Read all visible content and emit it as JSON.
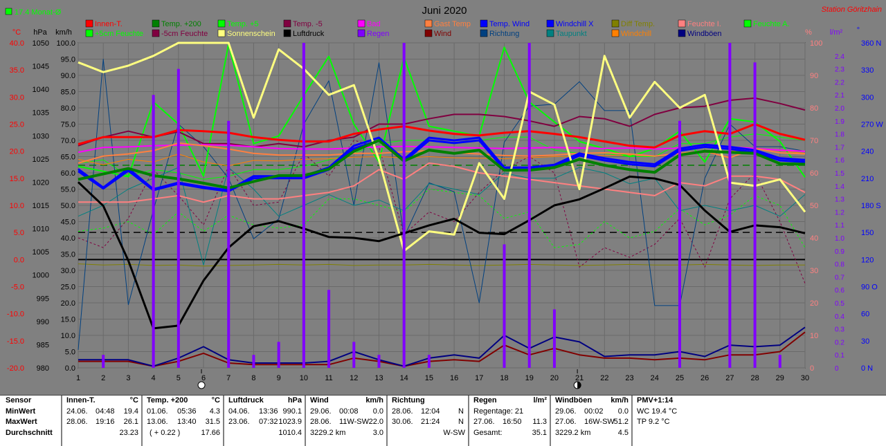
{
  "header": {
    "month_title": "Juni 2020",
    "station": "Station Göritzhain",
    "avg_label": "17.4 Monat-Ø"
  },
  "axes": {
    "left_units": [
      "°C",
      "hPa",
      "km/h"
    ],
    "right_units": [
      "%",
      "l/m²",
      "°"
    ],
    "temp_ticks": [
      "40.0",
      "35.0",
      "30.0",
      "25.0",
      "20.0",
      "15.0",
      "10.0",
      "5.0",
      "0.0",
      "-5.0",
      "-10.0",
      "-15.0",
      "-20.0"
    ],
    "pressure_ticks": [
      "1050",
      "1045",
      "1040",
      "1035",
      "1030",
      "1025",
      "1020",
      "1015",
      "1010",
      "1005",
      "1000",
      "995",
      "990",
      "985",
      "980"
    ],
    "wind_ticks": [
      "100.0",
      "95.0",
      "90.0",
      "85.0",
      "80.0",
      "75.0",
      "70.0",
      "65.0",
      "60.0",
      "55.0",
      "50.0",
      "45.0",
      "40.0",
      "35.0",
      "30.0",
      "25.0",
      "20.0",
      "15.0",
      "10.0",
      "5.0",
      "0.0"
    ],
    "humidity_ticks": [
      "100",
      "90",
      "80",
      "70",
      "60",
      "50",
      "40",
      "30",
      "20",
      "10",
      "0"
    ],
    "rain_ticks": [
      "2.4",
      "2.3",
      "2.2",
      "2.1",
      "2.0",
      "1.9",
      "1.8",
      "1.7",
      "1.6",
      "1.5",
      "1.4",
      "1.3",
      "1.2",
      "1.1",
      "1.0",
      "0.9",
      "0.8",
      "0.7",
      "0.6",
      "0.5",
      "0.4",
      "0.3",
      "0.2",
      "0.1",
      "0"
    ],
    "direction_ticks": [
      "360 N",
      "330",
      "300",
      "270 W",
      "240",
      "210",
      "180 S",
      "150",
      "120",
      "90 O",
      "60",
      "30",
      "0 N"
    ],
    "x_ticks": [
      "1",
      "2",
      "3",
      "4",
      "5",
      "6",
      "7",
      "8",
      "9",
      "10",
      "11",
      "12",
      "13",
      "14",
      "15",
      "16",
      "17",
      "18",
      "19",
      "20",
      "21",
      "22",
      "23",
      "24",
      "25",
      "26",
      "27",
      "28",
      "29",
      "30"
    ]
  },
  "legend": [
    {
      "label": "Innen-T.",
      "color": "#ff0000"
    },
    {
      "label": "Temp. +200",
      "color": "#008000"
    },
    {
      "label": "Temp. +5",
      "color": "#00ff00"
    },
    {
      "label": "Temp. -5",
      "color": "#800040"
    },
    {
      "label": "Bad",
      "color": "#ff00ff"
    },
    {
      "label": "Gast Temp",
      "color": "#ff8040"
    },
    {
      "label": "Temp. Wind",
      "color": "#0000ff"
    },
    {
      "label": "Windchill X",
      "color": "#0000ff"
    },
    {
      "label": "Diff Temp.",
      "color": "#808000"
    },
    {
      "label": "Feuchte I.",
      "color": "#ff8080"
    },
    {
      "label": "Feuchte A.",
      "color": "#00ff00"
    },
    {
      "label": "+5cm Feuchte",
      "color": "#00ff00"
    },
    {
      "label": "-5cm Feuchte",
      "color": "#800040"
    },
    {
      "label": "Sonnenschein",
      "color": "#ffff80"
    },
    {
      "label": "Luftdruck",
      "color": "#000000"
    },
    {
      "label": "Regen",
      "color": "#8000ff"
    },
    {
      "label": "Wind",
      "color": "#800000"
    },
    {
      "label": "Richtung",
      "color": "#004080"
    },
    {
      "label": "Taupunkt",
      "color": "#008080"
    },
    {
      "label": "Windchill",
      "color": "#ff8000"
    },
    {
      "label": "Windböen",
      "color": "#000080"
    }
  ],
  "chart_data": {
    "type": "line",
    "x": [
      1,
      2,
      3,
      4,
      5,
      6,
      7,
      8,
      9,
      10,
      11,
      12,
      13,
      14,
      15,
      16,
      17,
      18,
      19,
      20,
      21,
      22,
      23,
      24,
      25,
      26,
      27,
      28,
      29,
      30
    ],
    "scales": {
      "temperature_c": [
        -20,
        40
      ],
      "pressure_hpa": [
        980,
        1050
      ],
      "wind_kmh": [
        0,
        100
      ],
      "percent": [
        0,
        100
      ],
      "rain_lm2": [
        0,
        2.5
      ],
      "direction_deg": [
        0,
        360
      ]
    },
    "series": [
      {
        "name": "Innen-T.",
        "axis": "temperature_c",
        "color": "#ff0000",
        "width": 3,
        "values": [
          21.3,
          22.6,
          22.6,
          22.6,
          23.9,
          23.7,
          23.4,
          22.6,
          22.1,
          21.8,
          21.8,
          23.2,
          24.0,
          24.6,
          23.8,
          23.2,
          22.9,
          23.4,
          23.7,
          23.2,
          22.6,
          21.8,
          21.0,
          20.7,
          22.9,
          23.7,
          23.2,
          25.0,
          23.2,
          22.1
        ]
      },
      {
        "name": "Temp. +200",
        "axis": "temperature_c",
        "color": "#008000",
        "width": 4,
        "values": [
          14.8,
          15.8,
          16.8,
          15.5,
          14.9,
          14.1,
          13.2,
          14.4,
          15.5,
          15.5,
          16.7,
          20.0,
          22.0,
          18.2,
          20.2,
          19.6,
          20.2,
          16.5,
          16.5,
          17.0,
          18.5,
          17.4,
          16.6,
          16.1,
          19.3,
          20.0,
          19.8,
          19.6,
          17.7,
          17.6
        ]
      },
      {
        "name": "Temp. +5",
        "axis": "temperature_c",
        "color": "#00ff00",
        "width": 2,
        "values": [
          17.2,
          16.3,
          15.3,
          29.1,
          25.0,
          15.4,
          39.8,
          21.4,
          22.8,
          30.3,
          37.5,
          25.0,
          18.0,
          37.3,
          24.6,
          23.7,
          22.8,
          39.2,
          29.1,
          25.4,
          21.8,
          20.5,
          19.0,
          20.5,
          23.7,
          18.0,
          26.0,
          25.4,
          21.8,
          15.2
        ]
      },
      {
        "name": "Temp. -5",
        "axis": "temperature_c",
        "color": "#800040",
        "width": 2,
        "values": [
          21.0,
          22.6,
          23.7,
          22.6,
          23.6,
          21.4,
          21.4,
          20.8,
          21.4,
          20.8,
          22.0,
          22.6,
          25.0,
          25.0,
          26.0,
          26.8,
          26.8,
          26.4,
          25.6,
          24.6,
          26.4,
          26.0,
          24.6,
          26.8,
          28.0,
          28.3,
          29.4,
          29.8,
          28.8,
          27.6
        ]
      },
      {
        "name": "Bad",
        "axis": "temperature_c",
        "color": "#ff00ff",
        "width": 2,
        "values": [
          19.8,
          20.7,
          20.8,
          21.0,
          21.1,
          21.2,
          21.1,
          20.8,
          20.5,
          20.4,
          20.4,
          20.6,
          20.8,
          20.9,
          20.8,
          20.7,
          20.6,
          20.5,
          20.6,
          20.7,
          20.6,
          20.5,
          20.6,
          20.4,
          20.6,
          20.8,
          20.8,
          20.5,
          20.2,
          20.0
        ]
      },
      {
        "name": "Gast Temp",
        "axis": "temperature_c",
        "color": "#ff8040",
        "width": 2,
        "values": [
          17.8,
          19.1,
          19.5,
          20.1,
          21.5,
          21.0,
          20.4,
          19.6,
          19.3,
          19.3,
          19.3,
          19.6,
          19.6,
          19.9,
          20.1,
          19.7,
          19.5,
          19.2,
          19.1,
          19.3,
          19.6,
          19.7,
          19.5,
          19.1,
          19.6,
          20.0,
          18.8,
          20.5,
          19.7,
          19.5
        ]
      },
      {
        "name": "Temp. Wind",
        "axis": "temperature_c",
        "color": "#0000ff",
        "width": 3,
        "values": [
          16.7,
          13.3,
          16.8,
          13.0,
          14.2,
          13.4,
          12.8,
          15.4,
          15.4,
          15.4,
          17.0,
          21.0,
          22.5,
          18.5,
          22.5,
          22.0,
          22.5,
          17.0,
          17.0,
          17.5,
          19.6,
          18.7,
          18.0,
          17.6,
          20.5,
          21.2,
          20.8,
          20.2,
          18.7,
          18.4
        ]
      },
      {
        "name": "Windchill X",
        "axis": "temperature_c",
        "color": "#0000ff",
        "width": 3,
        "values": [
          16.3,
          13.1,
          16.4,
          12.8,
          14.0,
          13.2,
          12.6,
          15.0,
          15.0,
          15.0,
          16.6,
          20.5,
          22.0,
          18.1,
          22.0,
          21.5,
          22.0,
          16.6,
          16.6,
          17.1,
          19.2,
          18.3,
          17.6,
          17.2,
          20.1,
          20.8,
          20.4,
          19.8,
          18.3,
          18.0
        ]
      },
      {
        "name": "Diff Temp.",
        "axis": "temperature_c",
        "color": "#808000",
        "width": 1,
        "values": [
          -0.8,
          -1.0,
          -0.9,
          -1.1,
          -1.0,
          -1.2,
          -1.1,
          -1.0,
          -0.9,
          -1.0,
          -0.9,
          -1.1,
          -1.0,
          -1.0,
          -0.9,
          -1.0,
          -1.1,
          -1.0,
          -0.9,
          -1.0,
          -1.1,
          -1.0,
          -0.9,
          -1.0,
          -1.0,
          -0.9,
          -1.0,
          -1.1,
          -1.0,
          -1.0
        ]
      },
      {
        "name": "Feuchte I.",
        "axis": "percent",
        "color": "#ff8080",
        "width": 2,
        "values": [
          51,
          51,
          51,
          52,
          53,
          51,
          53,
          52,
          52,
          53,
          54,
          56,
          61,
          58,
          63,
          62,
          60,
          59,
          58,
          57,
          56,
          55,
          54,
          53,
          57,
          56,
          59,
          59,
          58,
          54
        ]
      },
      {
        "name": "Feuchte A.",
        "axis": "percent",
        "color": "#00ff00",
        "width": 1,
        "values": [
          63,
          64,
          59,
          61,
          60,
          58,
          59,
          61,
          61,
          62,
          64,
          66,
          69,
          70,
          70,
          69,
          70,
          71,
          71,
          67,
          66,
          66,
          65,
          65,
          69,
          69,
          71,
          72,
          71,
          70
        ]
      },
      {
        "name": "+5cm Feuchte",
        "axis": "percent",
        "color": "#00ff00",
        "width": 1,
        "values": [
          42,
          43,
          45,
          41,
          48,
          42,
          47,
          44,
          43,
          44,
          52,
          52,
          50,
          48,
          55,
          54,
          53,
          46,
          48,
          37,
          38,
          45,
          40,
          42,
          49,
          44,
          47,
          53,
          50,
          37
        ]
      },
      {
        "name": "-5cm Feuchte",
        "axis": "percent",
        "color": "#800040",
        "width": 1,
        "values": [
          40,
          37,
          46,
          61,
          53,
          44,
          62,
          50,
          51,
          66,
          59,
          70,
          68,
          41,
          48,
          45,
          54,
          61,
          65,
          60,
          31,
          37,
          34,
          38,
          46,
          31,
          52,
          60,
          45,
          26
        ]
      },
      {
        "name": "Sonnenschein",
        "axis": "percent",
        "color": "#ffff80",
        "width": 3,
        "values": [
          94,
          91,
          93,
          96,
          100,
          100,
          100,
          77,
          98,
          92,
          84,
          87,
          64,
          36,
          42,
          41,
          63,
          52,
          85,
          81,
          55,
          96,
          77,
          88,
          80,
          84,
          57,
          56,
          58,
          48
        ]
      },
      {
        "name": "Luftdruck",
        "axis": "pressure_hpa",
        "color": "#000000",
        "width": 3,
        "values": [
          1020.0,
          1014.9,
          1003.1,
          988.5,
          989.1,
          998.8,
          1005.9,
          1010.5,
          1011.6,
          1010.0,
          1008.2,
          1008.0,
          1007.3,
          1009.0,
          1010.7,
          1012.1,
          1009.1,
          1008.8,
          1011.8,
          1015.0,
          1016.3,
          1018.7,
          1021.2,
          1020.8,
          1019.4,
          1013.9,
          1009.3,
          1010.7,
          1010.3,
          1009.0
        ]
      },
      {
        "name": "Regen",
        "axis": "rain_lm2",
        "color": "#8000ff",
        "width": 4,
        "bars": true,
        "values": [
          0,
          0.1,
          0,
          2.1,
          2.3,
          0,
          1.9,
          0.1,
          0.2,
          2.5,
          0.6,
          0.2,
          0.1,
          2.5,
          0.1,
          0,
          0,
          0.95,
          2.5,
          0.45,
          0,
          0,
          0,
          0,
          1.9,
          0,
          2.5,
          2.35,
          0.1,
          0
        ]
      },
      {
        "name": "Wind",
        "axis": "wind_kmh",
        "color": "#800000",
        "width": 2,
        "values": [
          2.0,
          2.0,
          2.0,
          0.5,
          2.0,
          4.5,
          1.5,
          1.0,
          1.0,
          1.0,
          1.0,
          3.0,
          2.0,
          0.5,
          2.0,
          2.5,
          2.0,
          7.0,
          4.0,
          6.0,
          4.0,
          3.0,
          3.0,
          2.5,
          3.0,
          2.5,
          4.0,
          4.0,
          5.0,
          11.0
        ]
      },
      {
        "name": "Richtung",
        "axis": "direction_deg",
        "color": "#004080",
        "width": 1,
        "values": [
          20,
          342,
          70,
          175,
          270,
          245,
          210,
          143,
          165,
          270,
          318,
          180,
          338,
          145,
          205,
          195,
          72,
          250,
          290,
          292,
          317,
          285,
          285,
          69,
          69,
          210,
          270,
          245,
          245,
          240
        ]
      },
      {
        "name": "Taupunkt",
        "axis": "temperature_c",
        "color": "#008080",
        "width": 1,
        "values": [
          8.0,
          10.0,
          13.0,
          15.0,
          17.0,
          -1.0,
          17.0,
          13.0,
          8.0,
          10.0,
          12.0,
          10.0,
          11.0,
          9.0,
          14.0,
          13.0,
          12.0,
          16.0,
          15.0,
          15.0,
          17.0,
          16.0,
          14.0,
          15.0,
          9.0,
          10.0,
          9.0,
          10.0,
          8.0,
          12.0
        ]
      },
      {
        "name": "Windchill",
        "axis": "temperature_c",
        "color": "#ff8000",
        "width": 1,
        "values": [
          18.5,
          17.5,
          18.5,
          18.0,
          19.5,
          18.0,
          17.3,
          18.3,
          18.2,
          18.5,
          18.6,
          18.9,
          19.0,
          18.8,
          19.0,
          18.8,
          18.7,
          18.6,
          18.8,
          19.0,
          19.1,
          19.2,
          19.3,
          19.1,
          19.5,
          19.8,
          20.0,
          20.4,
          20.1,
          19.6
        ]
      },
      {
        "name": "Windböen",
        "axis": "wind_kmh",
        "color": "#000080",
        "width": 2,
        "values": [
          2.5,
          2.5,
          2.5,
          0.5,
          3.0,
          6.5,
          2.5,
          1.5,
          1.5,
          1.5,
          2.0,
          5.0,
          2.5,
          0.5,
          3.0,
          4.0,
          3.0,
          10.0,
          6.0,
          9.5,
          8.0,
          3.5,
          4.0,
          4.0,
          5.0,
          3.5,
          7.0,
          6.5,
          7.0,
          12.5
        ]
      }
    ],
    "reference_lines": [
      {
        "axis": "temperature_c",
        "value": 0,
        "style": "solid",
        "color": "#000000"
      },
      {
        "axis": "temperature_c",
        "value": 5,
        "style": "dashed",
        "color": "#000000"
      },
      {
        "axis": "temperature_c",
        "value": 17.4,
        "style": "dashed",
        "color": "#008000"
      }
    ],
    "moon_phase_days": [
      6,
      21
    ]
  },
  "footer": {
    "sensor": {
      "title": "Sensor",
      "rows": [
        "MinWert",
        "MaxWert",
        "Durchschnitt"
      ]
    },
    "innen": {
      "title": "Innen-T.",
      "unit": "°C",
      "min": [
        "24.06.",
        "04:48",
        "19.4"
      ],
      "max": [
        "28.06.",
        "19:16",
        "26.1"
      ],
      "avg": "23.23"
    },
    "temp200": {
      "title": "Temp. +200",
      "unit": "°C",
      "min": [
        "01.06.",
        "05:36",
        "4.3"
      ],
      "max": [
        "13.06.",
        "13:40",
        "31.5"
      ],
      "diff": "( + 0.22 )",
      "avg": "17.66"
    },
    "luftdruck": {
      "title": "Luftdruck",
      "unit": "hPa",
      "min": [
        "04.06.",
        "13:36",
        "990.1"
      ],
      "max": [
        "23.06.",
        "07:32",
        "1023.9"
      ],
      "avg": "1010.4"
    },
    "wind": {
      "title": "Wind",
      "unit": "km/h",
      "min": [
        "29.06.",
        "00:08",
        "0.0"
      ],
      "max": [
        "28.06.",
        "11W-SW",
        "22.0"
      ],
      "total": "3229.2 km",
      "avg": "3.0"
    },
    "richtung": {
      "title": "Richtung",
      "min": [
        "28.06.",
        "12:04",
        "N"
      ],
      "max": [
        "30.06.",
        "21:24",
        "N"
      ],
      "avg": "W-SW"
    },
    "regen": {
      "title": "Regen",
      "unit": "l/m²",
      "days": "Regentage: 21",
      "max": [
        "27.06.",
        "16:50",
        "11.3"
      ],
      "total_label": "Gesamt:",
      "total": "35.1"
    },
    "boeen": {
      "title": "Windböen",
      "unit": "km/h",
      "min": [
        "29.06.",
        "00:02",
        "0.0"
      ],
      "max": [
        "27.06.",
        "16W-SW",
        "51.2"
      ],
      "total": "3229.2 km",
      "avg": "4.5"
    },
    "pmv": {
      "title": "PMV+1:14",
      "wc": "WC 19.4 °C",
      "tp": "TP 9.2 °C"
    }
  }
}
